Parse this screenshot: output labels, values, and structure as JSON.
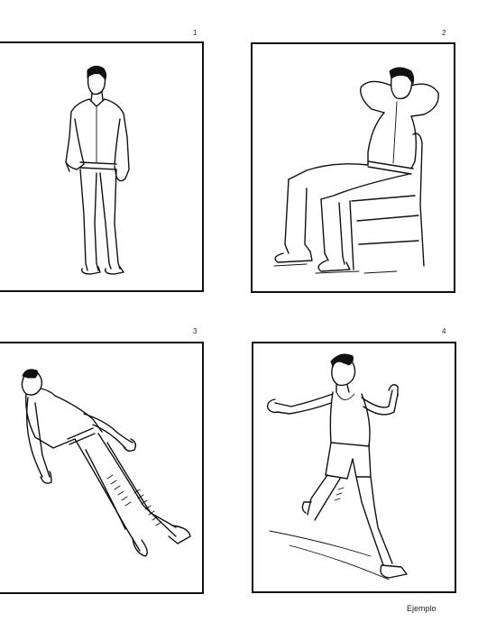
{
  "panels": [
    {
      "number": "1",
      "description_icon": "standing-man-icon"
    },
    {
      "number": "2",
      "description_icon": "seated-man-icon"
    },
    {
      "number": "3",
      "description_icon": "lying-man-icon"
    },
    {
      "number": "4",
      "description_icon": "running-man-icon"
    }
  ],
  "caption": "Ejemplo"
}
